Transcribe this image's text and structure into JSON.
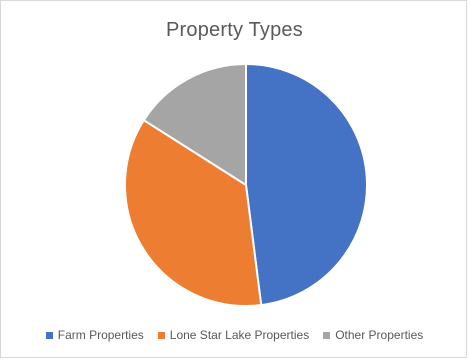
{
  "chart_data": {
    "type": "pie",
    "title": "Property Types",
    "categories": [
      "Farm Properties",
      "Lone Star Lake Properties",
      "Other Properties"
    ],
    "values": [
      48,
      36,
      16
    ],
    "colors": [
      "#4472C4",
      "#ED7D31",
      "#A5A5A5"
    ],
    "start_angle_deg": 0,
    "legend_position": "bottom"
  }
}
